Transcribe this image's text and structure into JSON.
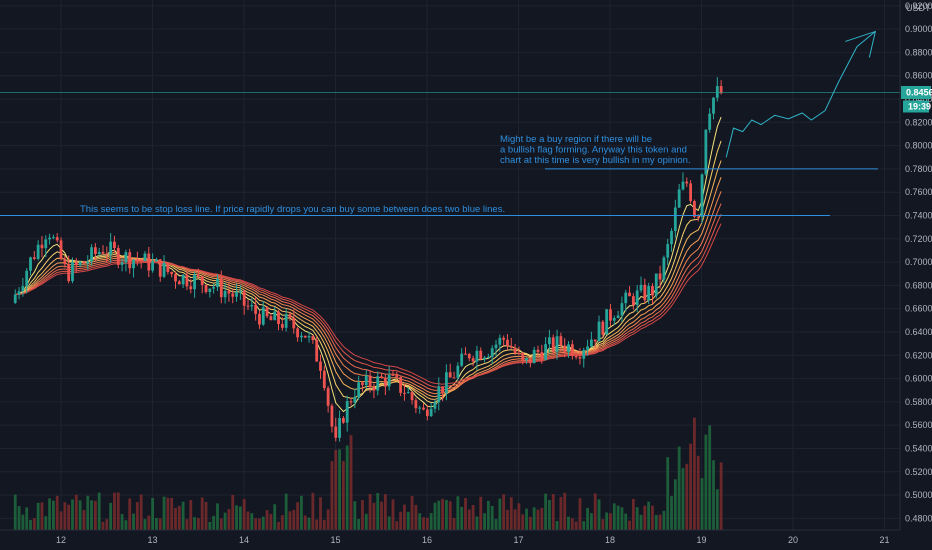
{
  "chart_data": {
    "type": "candlestick",
    "currency": "USDT",
    "y_ticks": [
      "0.4800",
      "0.5000",
      "0.5200",
      "0.5400",
      "0.5600",
      "0.5800",
      "0.6000",
      "0.6200",
      "0.6400",
      "0.6600",
      "0.6800",
      "0.7000",
      "0.7200",
      "0.7400",
      "0.7600",
      "0.7800",
      "0.8000",
      "0.8200",
      "0.8400",
      "0.8600",
      "0.8800",
      "0.9000",
      "0.9200"
    ],
    "x_ticks": [
      "12",
      "13",
      "14",
      "15",
      "16",
      "17",
      "18",
      "19",
      "20",
      "21"
    ],
    "ylim": [
      0.47,
      0.925
    ],
    "last_price": "0.8456",
    "countdown": "19:39",
    "horizontal_lines": [
      {
        "price": 0.8456
      },
      {
        "price": 0.78
      },
      {
        "price": 0.74
      }
    ],
    "annotations": [
      {
        "id": "stop-loss-note",
        "lines": [
          "This seems to be stop loss line. If price rapidly drops you can buy some between does two blue lines."
        ]
      },
      {
        "id": "buy-region-note",
        "lines": [
          "Might be a buy region if there will be",
          "a bullish flag forming. Anyway this token and",
          "chart at this time is very bullish in my opinion."
        ]
      }
    ],
    "price_path": [
      [
        11.5,
        0.665
      ],
      [
        11.7,
        0.7
      ],
      [
        11.9,
        0.73
      ],
      [
        12.1,
        0.69
      ],
      [
        12.3,
        0.7
      ],
      [
        12.5,
        0.712
      ],
      [
        12.7,
        0.705
      ],
      [
        12.9,
        0.702
      ],
      [
        13.1,
        0.696
      ],
      [
        13.3,
        0.688
      ],
      [
        13.5,
        0.685
      ],
      [
        13.7,
        0.68
      ],
      [
        13.9,
        0.673
      ],
      [
        14.1,
        0.66
      ],
      [
        14.3,
        0.65
      ],
      [
        14.5,
        0.648
      ],
      [
        14.7,
        0.64
      ],
      [
        14.8,
        0.625
      ],
      [
        14.9,
        0.61
      ],
      [
        15.0,
        0.56
      ],
      [
        15.05,
        0.54
      ],
      [
        15.1,
        0.565
      ],
      [
        15.25,
        0.59
      ],
      [
        15.4,
        0.595
      ],
      [
        15.6,
        0.6
      ],
      [
        15.8,
        0.59
      ],
      [
        16.0,
        0.57
      ],
      [
        16.1,
        0.585
      ],
      [
        16.3,
        0.6
      ],
      [
        16.5,
        0.622
      ],
      [
        16.7,
        0.625
      ],
      [
        16.9,
        0.635
      ],
      [
        17.1,
        0.61
      ],
      [
        17.2,
        0.62
      ],
      [
        17.3,
        0.625
      ],
      [
        17.5,
        0.63
      ],
      [
        17.7,
        0.625
      ],
      [
        17.9,
        0.64
      ],
      [
        18.1,
        0.66
      ],
      [
        18.3,
        0.67
      ],
      [
        18.5,
        0.675
      ],
      [
        18.6,
        0.69
      ],
      [
        18.7,
        0.72
      ],
      [
        18.8,
        0.76
      ],
      [
        18.9,
        0.77
      ],
      [
        18.95,
        0.745
      ],
      [
        19.0,
        0.74
      ],
      [
        19.05,
        0.78
      ],
      [
        19.1,
        0.83
      ],
      [
        19.2,
        0.845
      ]
    ],
    "projection": [
      [
        19.27,
        0.79
      ],
      [
        19.35,
        0.815
      ],
      [
        19.45,
        0.812
      ],
      [
        19.55,
        0.822
      ],
      [
        19.65,
        0.818
      ],
      [
        19.8,
        0.826
      ],
      [
        19.95,
        0.823
      ],
      [
        20.1,
        0.828
      ],
      [
        20.2,
        0.822
      ],
      [
        20.35,
        0.83
      ],
      [
        20.5,
        0.855
      ],
      [
        20.7,
        0.885
      ],
      [
        20.9,
        0.898
      ]
    ]
  }
}
